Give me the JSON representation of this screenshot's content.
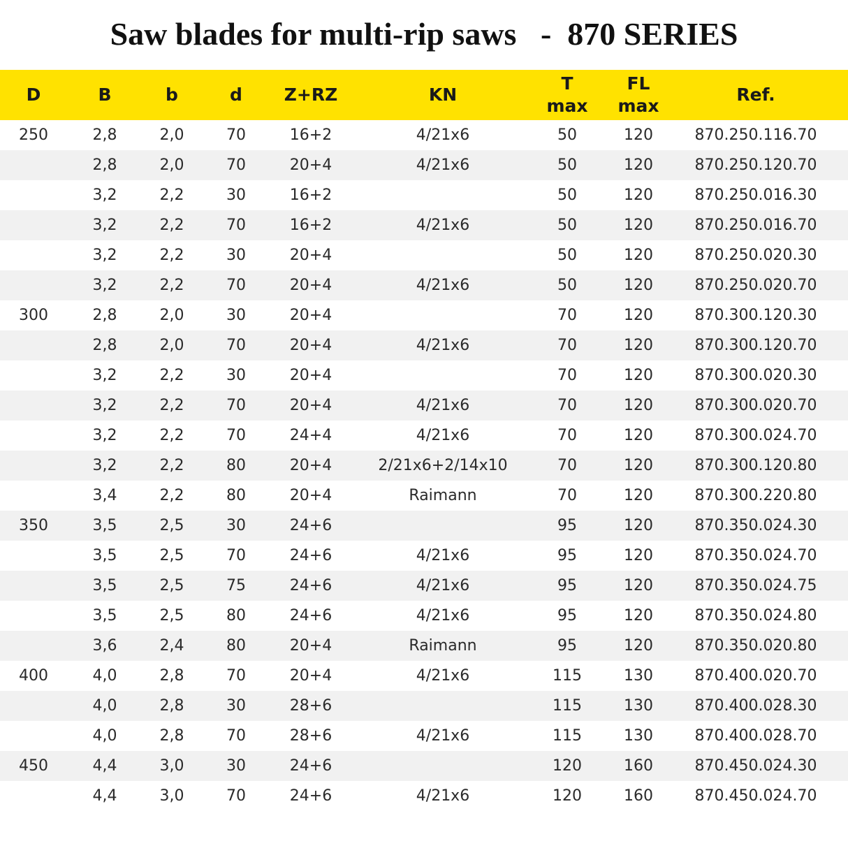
{
  "title": "Saw blades for multi-rip saws   -  870 SERIES",
  "columns": [
    {
      "key": "D",
      "label": "D",
      "sub": ""
    },
    {
      "key": "B",
      "label": "B",
      "sub": ""
    },
    {
      "key": "b",
      "label": "b",
      "sub": ""
    },
    {
      "key": "d",
      "label": "d",
      "sub": ""
    },
    {
      "key": "z",
      "label": "Z+RZ",
      "sub": ""
    },
    {
      "key": "kn",
      "label": "KN",
      "sub": ""
    },
    {
      "key": "t",
      "label": "T",
      "sub": "max"
    },
    {
      "key": "fl",
      "label": "FL",
      "sub": "max"
    },
    {
      "key": "ref",
      "label": "Ref.",
      "sub": ""
    }
  ],
  "header_color": "#ffe200",
  "stripe_color": "#f1f1f1",
  "rows": [
    {
      "D": "250",
      "B": "2,8",
      "b": "2,0",
      "d": "70",
      "z": "16+2",
      "kn": "4/21x6",
      "t": "50",
      "fl": "120",
      "ref": "870.250.116.70"
    },
    {
      "D": "",
      "B": "2,8",
      "b": "2,0",
      "d": "70",
      "z": "20+4",
      "kn": "4/21x6",
      "t": "50",
      "fl": "120",
      "ref": "870.250.120.70"
    },
    {
      "D": "",
      "B": "3,2",
      "b": "2,2",
      "d": "30",
      "z": "16+2",
      "kn": "",
      "t": "50",
      "fl": "120",
      "ref": "870.250.016.30"
    },
    {
      "D": "",
      "B": "3,2",
      "b": "2,2",
      "d": "70",
      "z": "16+2",
      "kn": "4/21x6",
      "t": "50",
      "fl": "120",
      "ref": "870.250.016.70"
    },
    {
      "D": "",
      "B": "3,2",
      "b": "2,2",
      "d": "30",
      "z": "20+4",
      "kn": "",
      "t": "50",
      "fl": "120",
      "ref": "870.250.020.30"
    },
    {
      "D": "",
      "B": "3,2",
      "b": "2,2",
      "d": "70",
      "z": "20+4",
      "kn": "4/21x6",
      "t": "50",
      "fl": "120",
      "ref": "870.250.020.70"
    },
    {
      "D": "300",
      "B": "2,8",
      "b": "2,0",
      "d": "30",
      "z": "20+4",
      "kn": "",
      "t": "70",
      "fl": "120",
      "ref": "870.300.120.30"
    },
    {
      "D": "",
      "B": "2,8",
      "b": "2,0",
      "d": "70",
      "z": "20+4",
      "kn": "4/21x6",
      "t": "70",
      "fl": "120",
      "ref": "870.300.120.70"
    },
    {
      "D": "",
      "B": "3,2",
      "b": "2,2",
      "d": "30",
      "z": "20+4",
      "kn": "",
      "t": "70",
      "fl": "120",
      "ref": "870.300.020.30"
    },
    {
      "D": "",
      "B": "3,2",
      "b": "2,2",
      "d": "70",
      "z": "20+4",
      "kn": "4/21x6",
      "t": "70",
      "fl": "120",
      "ref": "870.300.020.70"
    },
    {
      "D": "",
      "B": "3,2",
      "b": "2,2",
      "d": "70",
      "z": "24+4",
      "kn": "4/21x6",
      "t": "70",
      "fl": "120",
      "ref": "870.300.024.70"
    },
    {
      "D": "",
      "B": "3,2",
      "b": "2,2",
      "d": "80",
      "z": "20+4",
      "kn": "2/21x6+2/14x10",
      "t": "70",
      "fl": "120",
      "ref": "870.300.120.80"
    },
    {
      "D": "",
      "B": "3,4",
      "b": "2,2",
      "d": "80",
      "z": "20+4",
      "kn": "Raimann",
      "t": "70",
      "fl": "120",
      "ref": "870.300.220.80"
    },
    {
      "D": "350",
      "B": "3,5",
      "b": "2,5",
      "d": "30",
      "z": "24+6",
      "kn": "",
      "t": "95",
      "fl": "120",
      "ref": "870.350.024.30"
    },
    {
      "D": "",
      "B": "3,5",
      "b": "2,5",
      "d": "70",
      "z": "24+6",
      "kn": "4/21x6",
      "t": "95",
      "fl": "120",
      "ref": "870.350.024.70"
    },
    {
      "D": "",
      "B": "3,5",
      "b": "2,5",
      "d": "75",
      "z": "24+6",
      "kn": "4/21x6",
      "t": "95",
      "fl": "120",
      "ref": "870.350.024.75"
    },
    {
      "D": "",
      "B": "3,5",
      "b": "2,5",
      "d": "80",
      "z": "24+6",
      "kn": "4/21x6",
      "t": "95",
      "fl": "120",
      "ref": "870.350.024.80"
    },
    {
      "D": "",
      "B": "3,6",
      "b": "2,4",
      "d": "80",
      "z": "20+4",
      "kn": "Raimann",
      "t": "95",
      "fl": "120",
      "ref": "870.350.020.80"
    },
    {
      "D": "400",
      "B": "4,0",
      "b": "2,8",
      "d": "70",
      "z": "20+4",
      "kn": "4/21x6",
      "t": "115",
      "fl": "130",
      "ref": "870.400.020.70"
    },
    {
      "D": "",
      "B": "4,0",
      "b": "2,8",
      "d": "30",
      "z": "28+6",
      "kn": "",
      "t": "115",
      "fl": "130",
      "ref": "870.400.028.30"
    },
    {
      "D": "",
      "B": "4,0",
      "b": "2,8",
      "d": "70",
      "z": "28+6",
      "kn": "4/21x6",
      "t": "115",
      "fl": "130",
      "ref": "870.400.028.70"
    },
    {
      "D": "450",
      "B": "4,4",
      "b": "3,0",
      "d": "30",
      "z": "24+6",
      "kn": "",
      "t": "120",
      "fl": "160",
      "ref": "870.450.024.30"
    },
    {
      "D": "",
      "B": "4,4",
      "b": "3,0",
      "d": "70",
      "z": "24+6",
      "kn": "4/21x6",
      "t": "120",
      "fl": "160",
      "ref": "870.450.024.70"
    }
  ]
}
